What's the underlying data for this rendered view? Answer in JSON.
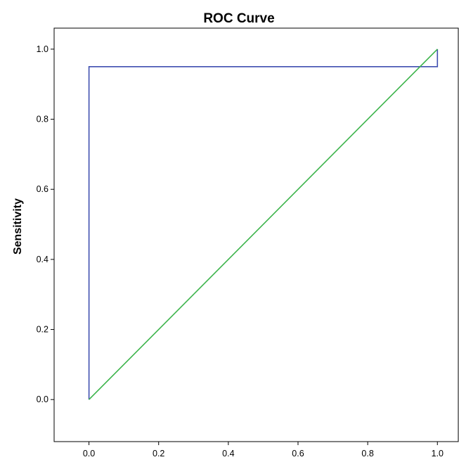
{
  "chart_data": {
    "type": "line",
    "title": "ROC Curve",
    "xlabel": "",
    "ylabel": "Sensitivity",
    "xlim": [
      -0.1,
      1.06
    ],
    "ylim": [
      -0.12,
      1.06
    ],
    "xticks": [
      "0.0",
      "0.2",
      "0.4",
      "0.6",
      "0.8",
      "1.0"
    ],
    "yticks": [
      "0.0",
      "0.2",
      "0.4",
      "0.6",
      "0.8",
      "1.0"
    ],
    "grid": false,
    "legend": "none",
    "series": [
      {
        "color": "#3f4fb0",
        "x": [
          0.0,
          0.0,
          1.0,
          1.0
        ],
        "y": [
          0.0,
          0.95,
          0.95,
          1.0
        ]
      },
      {
        "color": "#3cb44b",
        "x": [
          0.0,
          1.0
        ],
        "y": [
          0.0,
          1.0
        ]
      }
    ]
  }
}
